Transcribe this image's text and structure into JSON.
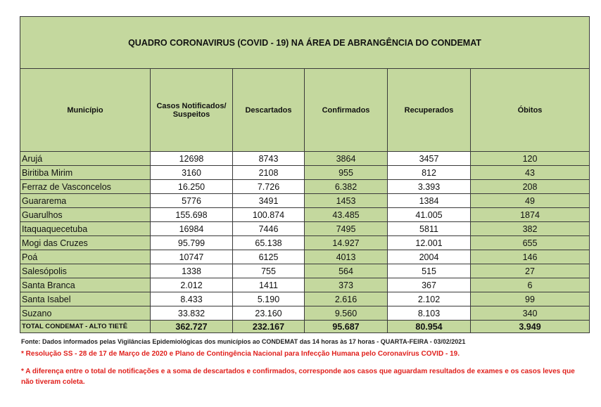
{
  "title": "QUADRO CORONAVIRUS (COVID - 19) NA ÁREA DE ABRANGÊNCIA DO CONDEMAT",
  "headers": [
    "Município",
    "Casos Notificados/ Suspeitos",
    "Descartados",
    "Confirmados",
    "Recuperados",
    "Óbitos"
  ],
  "rows": [
    [
      "Arujá",
      "12698",
      "8743",
      "3864",
      "3457",
      "120"
    ],
    [
      "Biritiba Mirim",
      "3160",
      "2108",
      "955",
      "812",
      "43"
    ],
    [
      "Ferraz de Vasconcelos",
      "16.250",
      "7.726",
      "6.382",
      "3.393",
      "208"
    ],
    [
      "Guararema",
      "5776",
      "3491",
      "1453",
      "1384",
      "49"
    ],
    [
      "Guarulhos",
      "155.698",
      "100.874",
      "43.485",
      "41.005",
      "1874"
    ],
    [
      "Itaquaquecetuba",
      "16984",
      "7446",
      "7495",
      "5811",
      "382"
    ],
    [
      "Mogi das Cruzes",
      "95.799",
      "65.138",
      "14.927",
      "12.001",
      "655"
    ],
    [
      "Poá",
      "10747",
      "6125",
      "4013",
      "2004",
      "146"
    ],
    [
      "Salesópolis",
      "1338",
      "755",
      "564",
      "515",
      "27"
    ],
    [
      "Santa Branca",
      "2.012",
      "1411",
      "373",
      "367",
      "6"
    ],
    [
      "Santa Isabel",
      "8.433",
      "5.190",
      "2.616",
      "2.102",
      "99"
    ],
    [
      "Suzano",
      "33.832",
      "23.160",
      "9.560",
      "8.103",
      "340"
    ]
  ],
  "total": [
    "TOTAL CONDEMAT - ALTO TIETÊ",
    "362.727",
    "232.167",
    "95.687",
    "80.954",
    "3.949"
  ],
  "source": "Fonte: Dados informados pelas Vigilâncias Epidemiológicas dos municípios ao CONDEMAT das 14 horas às 17 horas - QUARTA-FEIRA - 03/02/2021",
  "note1": "* Resolução SS - 28 de 17 de Março de 2020 e Plano de Contingência Nacional para Infecção Humana pelo Coronavírus COVID - 19.",
  "note2": "* A diferença entre o total de notificações e a soma de descartados e confirmados, corresponde aos casos que aguardam resultados de exames e os casos leves que não tiveram coleta."
}
